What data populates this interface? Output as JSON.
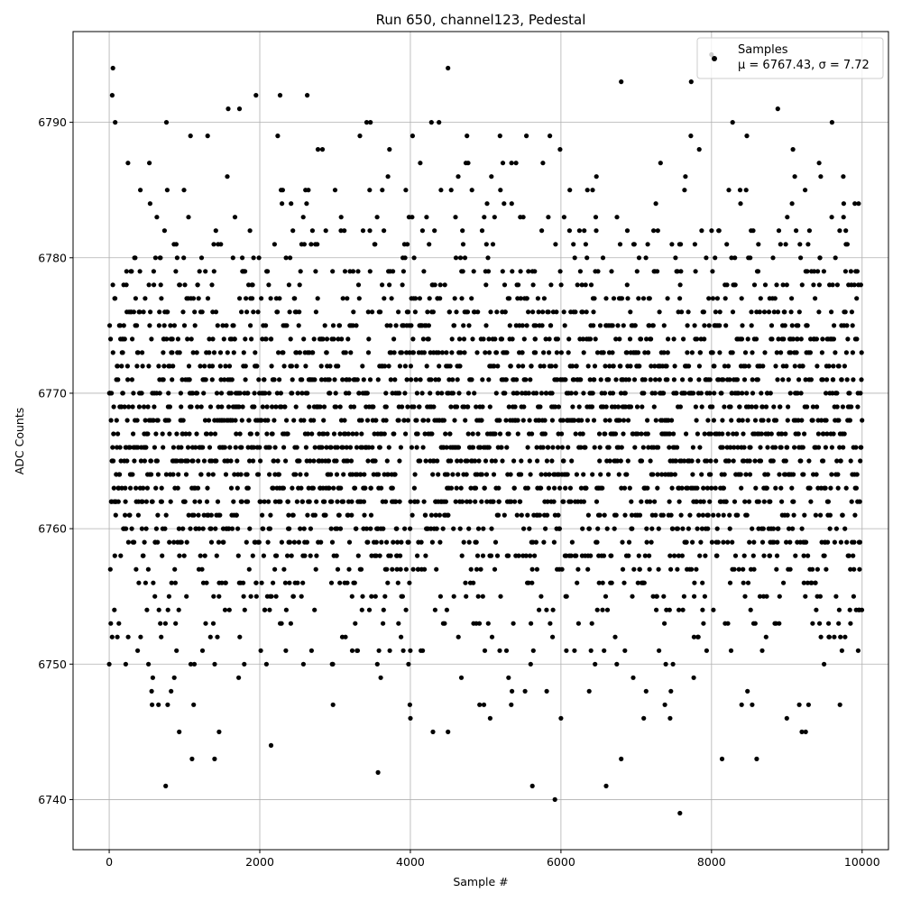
{
  "chart_data": {
    "type": "scatter",
    "title": "Run 650, channel123, Pedestal",
    "xlabel": "Sample #",
    "ylabel": "ADC Counts",
    "xlim": [
      -480,
      10350
    ],
    "ylim": [
      6736.3,
      6796.7
    ],
    "xticks": [
      0,
      2000,
      4000,
      6000,
      8000,
      10000
    ],
    "yticks": [
      6740,
      6750,
      6760,
      6770,
      6780,
      6790
    ],
    "grid": true,
    "legend": {
      "placement": "top-right",
      "entries": [
        {
          "label": "Samples",
          "stats": "μ = 6767.43, σ = 7.72"
        }
      ]
    },
    "marker_color": "#000000",
    "summary": {
      "n_samples": 10000,
      "mean": 6767.43,
      "sigma": 7.72,
      "value_step": 1
    },
    "series": [
      {
        "name": "Samples",
        "outliers": [
          [
            50,
            6794
          ],
          [
            40,
            6792
          ],
          [
            80,
            6790
          ],
          [
            750,
            6741
          ],
          [
            1100,
            6743
          ],
          [
            1400,
            6743
          ],
          [
            2150,
            6744
          ],
          [
            3570,
            6742
          ],
          [
            4500,
            6794
          ],
          [
            5620,
            6741
          ],
          [
            5920,
            6740
          ],
          [
            6600,
            6741
          ],
          [
            6800,
            6793
          ],
          [
            6800,
            6743
          ],
          [
            7580,
            6739
          ],
          [
            7730,
            6793
          ],
          [
            8140,
            6743
          ],
          [
            8600,
            6743
          ],
          [
            8880,
            6791
          ],
          [
            9600,
            6790
          ],
          [
            2270,
            6792
          ],
          [
            2630,
            6792
          ],
          [
            1950,
            6792
          ],
          [
            4000,
            6746
          ],
          [
            4500,
            6745
          ],
          [
            4300,
            6745
          ],
          [
            6000,
            6746
          ],
          [
            7100,
            6746
          ],
          [
            7450,
            6746
          ],
          [
            9000,
            6746
          ],
          [
            9200,
            6745
          ],
          [
            9250,
            6745
          ],
          [
            930,
            6745
          ],
          [
            1460,
            6745
          ],
          [
            5060,
            6746
          ],
          [
            760,
            6790
          ],
          [
            1580,
            6791
          ],
          [
            1730,
            6791
          ],
          [
            3420,
            6790
          ],
          [
            3470,
            6790
          ],
          [
            4280,
            6790
          ],
          [
            4380,
            6790
          ],
          [
            8280,
            6790
          ],
          [
            8000,
            6795
          ],
          [
            220,
            6750
          ],
          [
            7380,
            6747
          ],
          [
            8400,
            6747
          ],
          [
            8540,
            6747
          ]
        ]
      }
    ]
  }
}
